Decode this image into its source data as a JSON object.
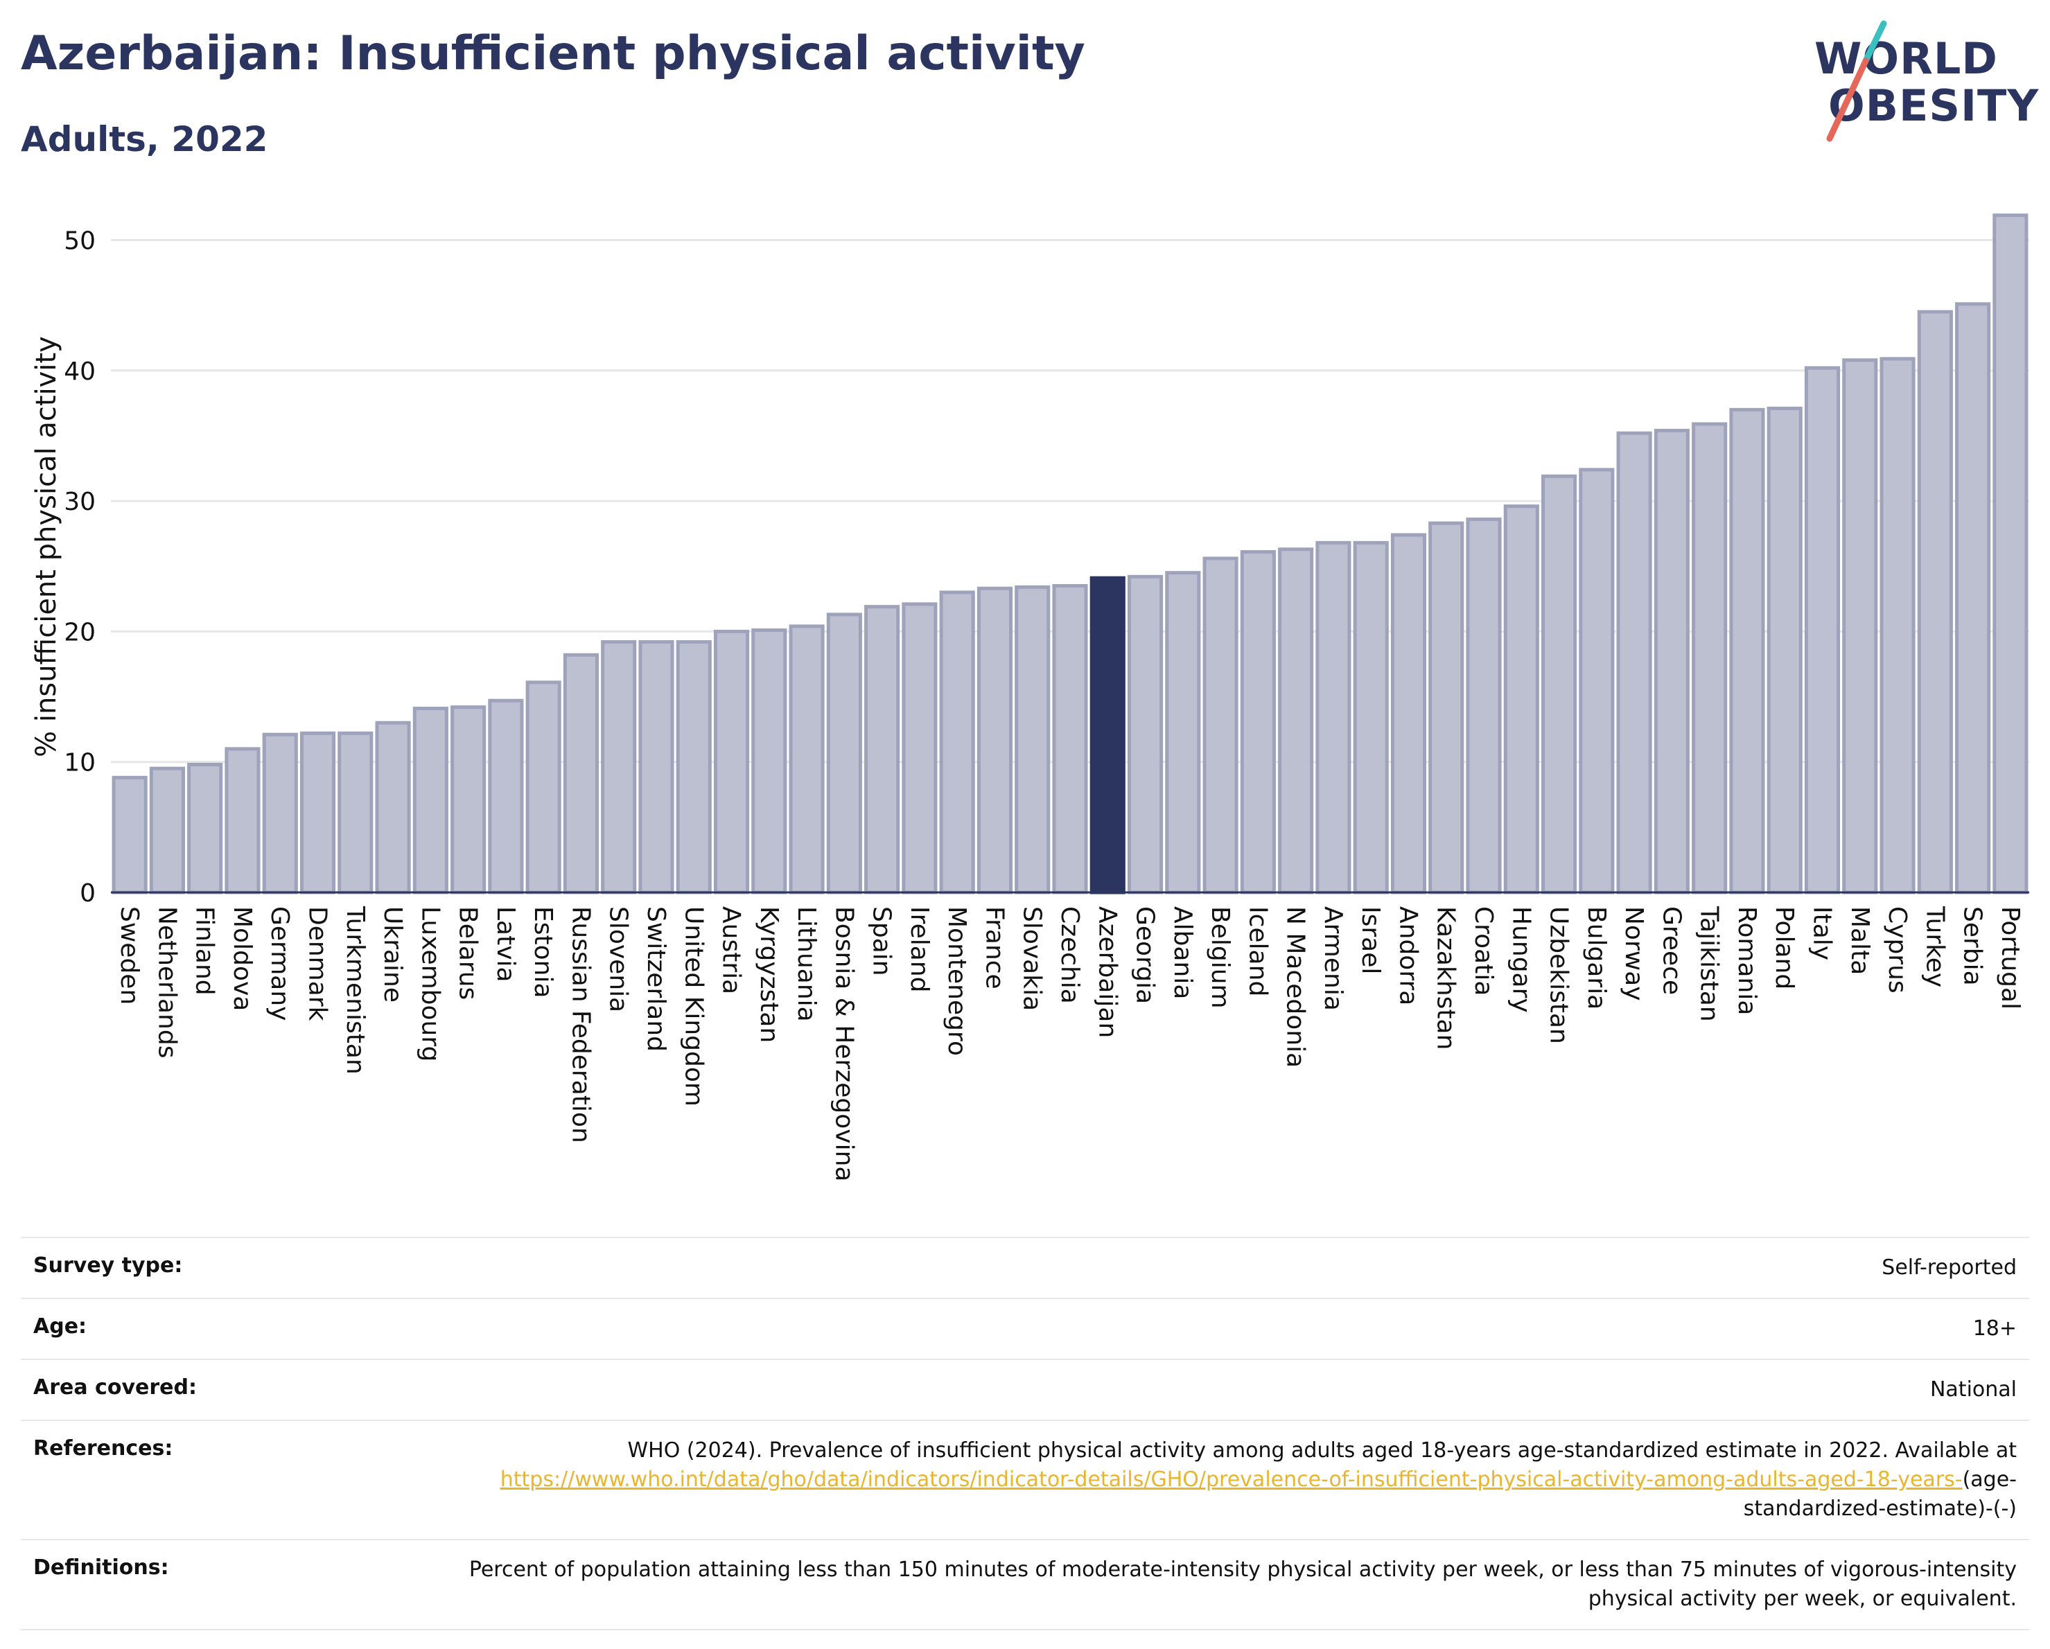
{
  "header": {
    "title": "Azerbaijan: Insufficient physical activity",
    "subtitle": "Adults, 2022"
  },
  "logo": {
    "line1": "WORLD",
    "line2": "OBESITY",
    "colors": {
      "text": "#2b3560",
      "slash_top": "#3bbfbf",
      "slash_bottom": "#e5675a"
    }
  },
  "chart_data": {
    "type": "bar",
    "ylabel": "% insufficient physical activity",
    "xlabel": "",
    "ylim": [
      0,
      53
    ],
    "yticks": [
      0,
      10,
      20,
      30,
      40,
      50
    ],
    "grid": true,
    "highlight": "Azerbaijan",
    "colors": {
      "bar": "#bcc0d0",
      "bar_edge": "#9ea3bb",
      "highlight": "#2b3560",
      "grid": "#e6e6e6",
      "axis": "#2b3560"
    },
    "categories": [
      "Sweden",
      "Netherlands",
      "Finland",
      "Moldova",
      "Germany",
      "Denmark",
      "Turkmenistan",
      "Ukraine",
      "Luxembourg",
      "Belarus",
      "Latvia",
      "Estonia",
      "Russian Federation",
      "Slovenia",
      "Switzerland",
      "United Kingdom",
      "Austria",
      "Kyrgyzstan",
      "Lithuania",
      "Bosnia & Herzegovina",
      "Spain",
      "Ireland",
      "Montenegro",
      "France",
      "Slovakia",
      "Czechia",
      "Azerbaijan",
      "Georgia",
      "Albania",
      "Belgium",
      "Iceland",
      "N Macedonia",
      "Armenia",
      "Israel",
      "Andorra",
      "Kazakhstan",
      "Croatia",
      "Hungary",
      "Uzbekistan",
      "Bulgaria",
      "Norway",
      "Greece",
      "Tajikistan",
      "Romania",
      "Poland",
      "Italy",
      "Malta",
      "Cyprus",
      "Turkey",
      "Serbia",
      "Portugal"
    ],
    "values": [
      8.8,
      9.5,
      9.8,
      11.0,
      12.1,
      12.2,
      12.2,
      13.0,
      14.1,
      14.2,
      14.7,
      16.1,
      18.2,
      19.2,
      19.2,
      19.2,
      20.0,
      20.1,
      20.4,
      21.3,
      21.9,
      22.1,
      23.0,
      23.3,
      23.4,
      23.5,
      24.1,
      24.2,
      24.5,
      25.6,
      26.1,
      26.3,
      26.8,
      26.8,
      27.4,
      28.3,
      28.6,
      29.6,
      31.9,
      32.4,
      35.2,
      35.4,
      35.9,
      37.0,
      37.1,
      40.2,
      40.8,
      40.9,
      44.5,
      45.1,
      51.9
    ]
  },
  "info": {
    "survey_type": {
      "label": "Survey type:",
      "value": "Self-reported"
    },
    "age": {
      "label": "Age:",
      "value": "18+"
    },
    "area": {
      "label": "Area covered:",
      "value": "National"
    },
    "references": {
      "label": "References:",
      "text": "WHO (2024). Prevalence of insufficient physical activity among adults aged 18-years age-standardized estimate in 2022. Available at",
      "link": "https://www.who.int/data/gho/data/indicators/indicator-details/GHO/prevalence-of-insufficient-physical-activity-among-adults-aged-18-years-",
      "suffix": "(age-standardized-estimate)-(-)"
    },
    "definitions": {
      "label": "Definitions:",
      "value": "Percent of population attaining less than 150 minutes of moderate-intensity physical activity per week, or less than 75 minutes of vigorous-intensity physical activity per week, or equivalent."
    }
  }
}
